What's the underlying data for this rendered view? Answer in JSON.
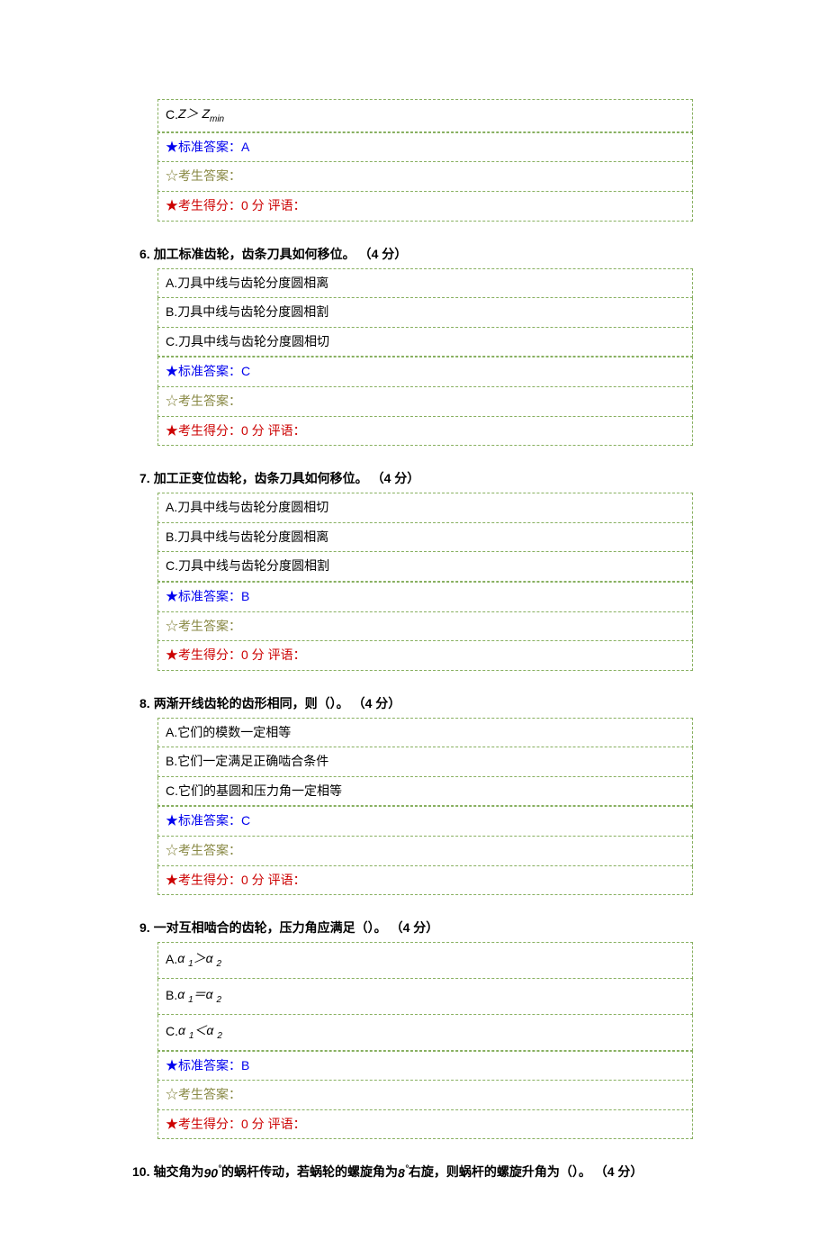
{
  "labels": {
    "std_answer_prefix": "★标准答案：",
    "cand_answer_prefix": "☆考生答案：",
    "cand_score_prefix": "★考生得分：",
    "score_suffix": " 分",
    "comment_label": "评语：",
    "points_open": "（",
    "points_close": " 分）"
  },
  "q5_tail": {
    "optC_prefix": "C.",
    "optC_expr": "Z＞ Z",
    "optC_sub": "min",
    "std_answer": "A",
    "cand_answer": "",
    "score": "0",
    "comment": ""
  },
  "questions": [
    {
      "num": "6.",
      "text": "加工标准齿轮，齿条刀具如何移位。 ",
      "points": "4",
      "options": [
        {
          "label": "A.",
          "text": "刀具中线与齿轮分度圆相离"
        },
        {
          "label": "B.",
          "text": "刀具中线与齿轮分度圆相割"
        },
        {
          "label": "C.",
          "text": "刀具中线与齿轮分度圆相切"
        }
      ],
      "std_answer": "C",
      "cand_answer": "",
      "score": "0",
      "comment": ""
    },
    {
      "num": "7.",
      "text": "加工正变位齿轮，齿条刀具如何移位。 ",
      "points": "4",
      "options": [
        {
          "label": "A.",
          "text": "刀具中线与齿轮分度圆相切"
        },
        {
          "label": "B.",
          "text": "刀具中线与齿轮分度圆相离"
        },
        {
          "label": "C.",
          "text": "刀具中线与齿轮分度圆相割"
        }
      ],
      "std_answer": "B",
      "cand_answer": "",
      "score": "0",
      "comment": ""
    },
    {
      "num": "8.",
      "text": "两渐开线齿轮的齿形相同，则（）。 ",
      "points": "4",
      "options": [
        {
          "label": "A.",
          "text": "它们的模数一定相等"
        },
        {
          "label": "B.",
          "text": "它们一定满足正确啮合条件"
        },
        {
          "label": "C.",
          "text": "它们的基圆和压力角一定相等"
        }
      ],
      "std_answer": "C",
      "cand_answer": "",
      "score": "0",
      "comment": ""
    }
  ],
  "q9": {
    "num": "9.",
    "text": "一对互相啮合的齿轮，压力角应满足（）。 ",
    "points": "4",
    "opts": [
      {
        "label": "A.",
        "expr_html": "α <span class='sub'>1</span>＞α <span class='sub'>2</span>"
      },
      {
        "label": "B.",
        "expr_html": "α <span class='sub'>1</span>＝α <span class='sub'>2</span>"
      },
      {
        "label": "C.",
        "expr_html": "α <span class='sub'>1</span>＜α <span class='sub'>2</span>"
      }
    ],
    "std_answer": "B",
    "cand_answer": "",
    "score": "0",
    "comment": ""
  },
  "q10": {
    "num": "10.",
    "pre": "轴交角为",
    "angle1": "90",
    "deg": "°",
    "mid1": "的蜗杆传动，若蜗轮的螺旋角为",
    "angle2": "8",
    "mid2": "右旋，则蜗杆的螺旋升角为（）。 ",
    "points": "4"
  }
}
